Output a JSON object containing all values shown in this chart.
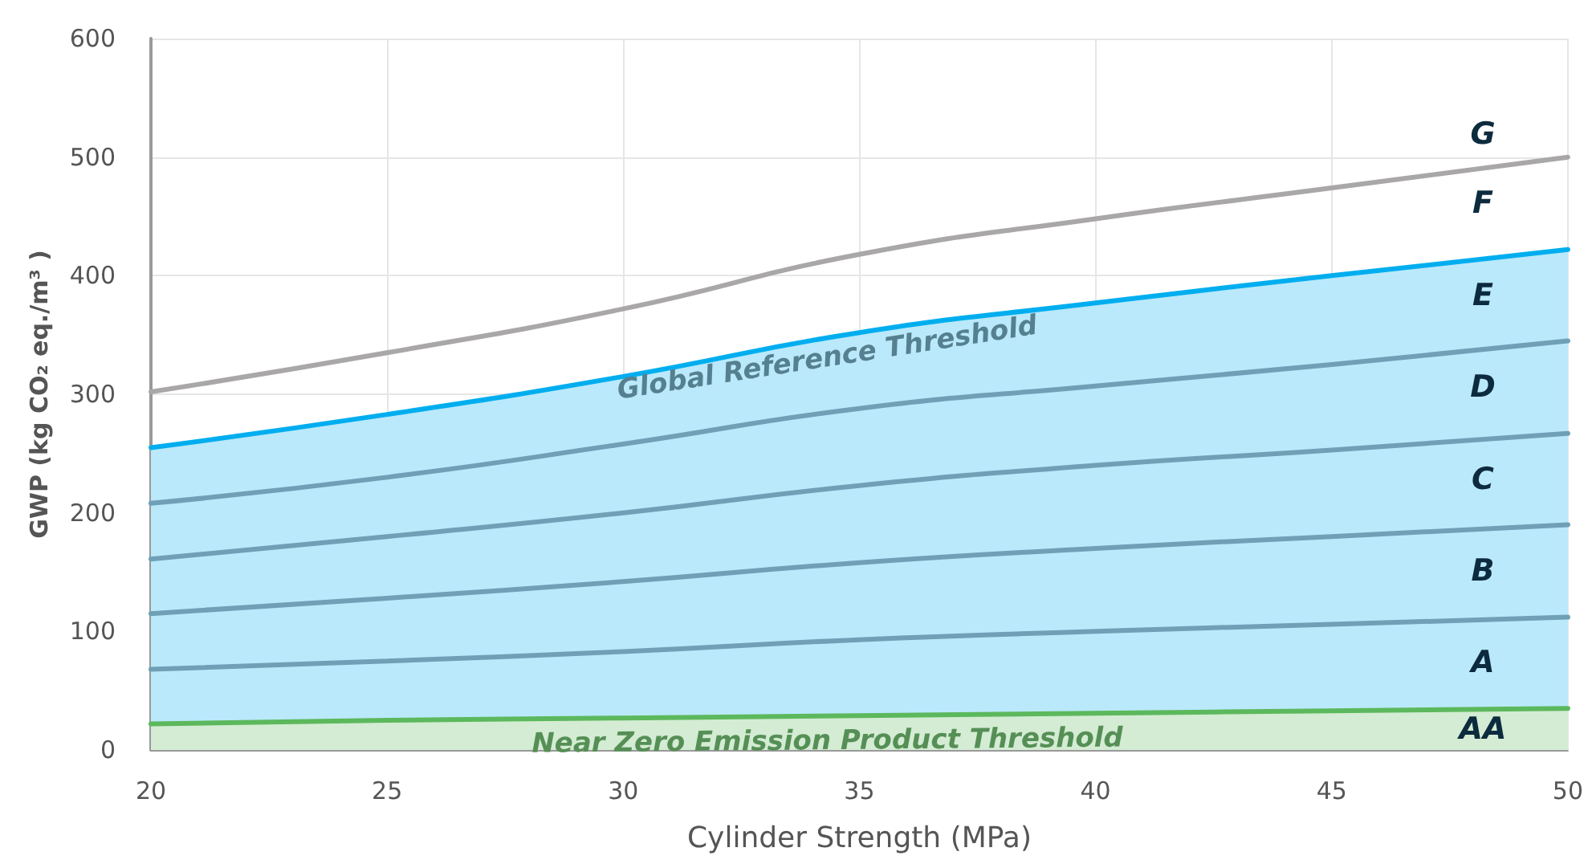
{
  "chart_data": {
    "type": "line",
    "xlabel": "Cylinder Strength (MPa)",
    "ylabel": "GWP (kg CO₂ eq./m³ )",
    "x": [
      20,
      25,
      30,
      35,
      40,
      45,
      50
    ],
    "series": [
      {
        "color": "#a9a7a8",
        "values": [
          302,
          335,
          372,
          418,
          448,
          474,
          500
        ]
      },
      {
        "name": "Global Reference Threshold",
        "type": "area",
        "color": "#00aeef",
        "values": [
          255,
          283,
          315,
          352,
          377,
          400,
          422
        ]
      },
      {
        "color": "#6fa0b5",
        "values": [
          208,
          230,
          258,
          288,
          307,
          325,
          345
        ]
      },
      {
        "color": "#6fa0b5",
        "values": [
          161,
          180,
          200,
          223,
          240,
          253,
          267
        ]
      },
      {
        "color": "#6fa0b5",
        "values": [
          115,
          128,
          142,
          158,
          170,
          180,
          190
        ]
      },
      {
        "color": "#6fa0b5",
        "values": [
          68,
          75,
          83,
          93,
          100,
          106,
          112
        ]
      },
      {
        "name": "Near Zero Emission Product Threshold",
        "type": "area",
        "color": "#5cb85c",
        "values": [
          22,
          25,
          27,
          29,
          31,
          33,
          35
        ]
      }
    ],
    "annotations": [
      "G",
      "F",
      "E",
      "D",
      "C",
      "B",
      "A",
      "AA"
    ],
    "xlim": [
      20,
      50
    ],
    "xticks": [
      20,
      25,
      30,
      35,
      40,
      45,
      50
    ],
    "ylim": [
      0,
      600
    ],
    "yticks": [
      0,
      100,
      200,
      300,
      400,
      500,
      600
    ],
    "grid": true,
    "legend": false,
    "marker": "none",
    "line_style": "solid"
  }
}
